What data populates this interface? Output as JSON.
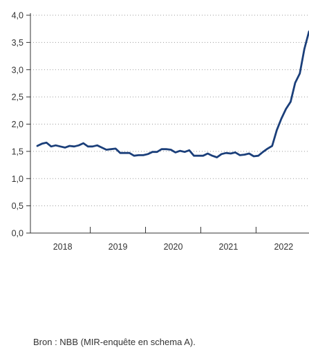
{
  "chart_data": {
    "type": "line",
    "title": "",
    "xlabel": "",
    "ylabel": "",
    "ylim": [
      0,
      4
    ],
    "y_ticks": [
      "0,0",
      "0,5",
      "1,0",
      "1,5",
      "2,0",
      "2,5",
      "3,0",
      "3,5",
      "4,0"
    ],
    "x_categories": [
      "2018",
      "2019",
      "2020",
      "2021",
      "2022"
    ],
    "grid": true,
    "line_color": "#1b3f7a",
    "series": [
      {
        "x": [
          "2018-01",
          "2018-02",
          "2018-03",
          "2018-04",
          "2018-05",
          "2018-06",
          "2018-07",
          "2018-08",
          "2018-09",
          "2018-10",
          "2018-11",
          "2018-12",
          "2019-01",
          "2019-02",
          "2019-03",
          "2019-04",
          "2019-05",
          "2019-06",
          "2019-07",
          "2019-08",
          "2019-09",
          "2019-10",
          "2019-11",
          "2019-12",
          "2020-01",
          "2020-02",
          "2020-03",
          "2020-04",
          "2020-05",
          "2020-06",
          "2020-07",
          "2020-08",
          "2020-09",
          "2020-10",
          "2020-11",
          "2020-12",
          "2021-01",
          "2021-02",
          "2021-03",
          "2021-04",
          "2021-05",
          "2021-06",
          "2021-07",
          "2021-08",
          "2021-09",
          "2021-10",
          "2021-11",
          "2021-12",
          "2022-01",
          "2022-02",
          "2022-03",
          "2022-04",
          "2022-05",
          "2022-06",
          "2022-07",
          "2022-08",
          "2022-09",
          "2022-10",
          "2022-11",
          "2022-12"
        ],
        "values": [
          1.6,
          1.64,
          1.66,
          1.59,
          1.61,
          1.59,
          1.57,
          1.6,
          1.59,
          1.61,
          1.65,
          1.59,
          1.59,
          1.61,
          1.57,
          1.53,
          1.54,
          1.55,
          1.47,
          1.47,
          1.47,
          1.42,
          1.43,
          1.43,
          1.45,
          1.49,
          1.49,
          1.54,
          1.54,
          1.53,
          1.48,
          1.51,
          1.49,
          1.52,
          1.42,
          1.42,
          1.42,
          1.46,
          1.42,
          1.39,
          1.45,
          1.47,
          1.46,
          1.48,
          1.43,
          1.44,
          1.46,
          1.41,
          1.42,
          1.49,
          1.55,
          1.6,
          1.89,
          2.1,
          2.28,
          2.41,
          2.76,
          2.93,
          3.38,
          3.7
        ]
      }
    ]
  },
  "source_note": "Bron : NBB (MIR-enquête en schema A)."
}
